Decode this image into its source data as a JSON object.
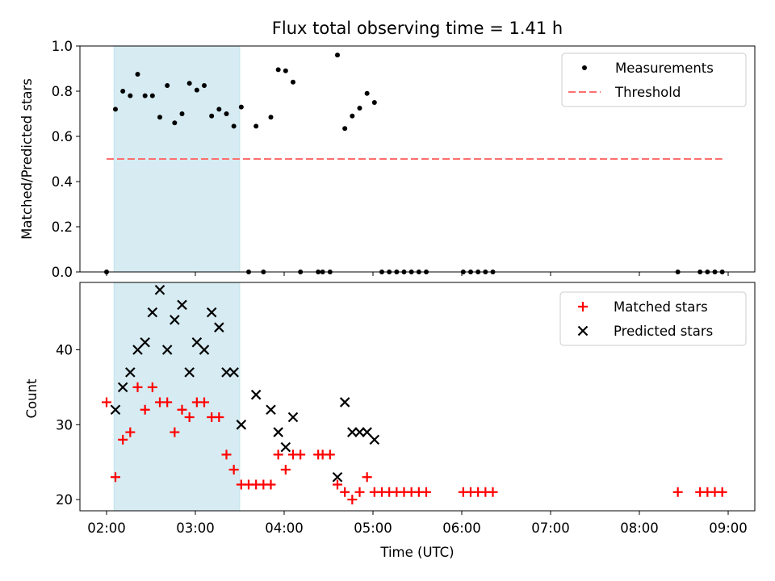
{
  "figure": {
    "title": "Flux total observing time = 1.41 h",
    "xlabel": "Time (UTC)",
    "x_tick_labels": [
      "02:00",
      "03:00",
      "04:00",
      "05:00",
      "06:00",
      "07:00",
      "08:00",
      "09:00"
    ]
  },
  "chart_data": [
    {
      "type": "scatter",
      "panel": "top",
      "ylabel": "Matched/Predicted stars",
      "xlim": [
        "01:42",
        "09:18"
      ],
      "ylim": [
        0,
        1.0
      ],
      "y_ticks": [
        "0.0",
        "0.2",
        "0.4",
        "0.6",
        "0.8",
        "1.0"
      ],
      "legend_position": "upper right",
      "shaded_span": {
        "x_start": "02:05",
        "x_end": "03:30",
        "color": "#add8e6"
      },
      "series": [
        {
          "name": "Measurements",
          "marker": "dot",
          "color": "#000000",
          "x": [
            "02:00",
            "02:06",
            "02:11",
            "02:16",
            "02:21",
            "02:26",
            "02:31",
            "02:36",
            "02:41",
            "02:46",
            "02:51",
            "02:56",
            "03:01",
            "03:06",
            "03:11",
            "03:16",
            "03:21",
            "03:26",
            "03:31",
            "03:36",
            "03:41",
            "03:46",
            "03:51",
            "03:56",
            "04:01",
            "04:06",
            "04:11",
            "04:23",
            "04:26",
            "04:31",
            "04:36",
            "04:41",
            "04:46",
            "04:51",
            "04:56",
            "05:01",
            "05:06",
            "05:11",
            "05:16",
            "05:21",
            "05:26",
            "05:31",
            "05:36",
            "06:01",
            "06:06",
            "06:11",
            "06:16",
            "06:21",
            "08:26",
            "08:41",
            "08:46",
            "08:51",
            "08:56"
          ],
          "y": [
            0.0,
            0.72,
            0.8,
            0.78,
            0.875,
            0.78,
            0.78,
            0.685,
            0.825,
            0.66,
            0.7,
            0.835,
            0.805,
            0.825,
            0.69,
            0.72,
            0.7,
            0.645,
            0.73,
            0.0,
            0.645,
            0.0,
            0.685,
            0.895,
            0.89,
            0.84,
            0.0,
            0.0,
            0.0,
            0.0,
            0.96,
            0.635,
            0.69,
            0.725,
            0.79,
            0.75,
            0.0,
            0.0,
            0.0,
            0.0,
            0.0,
            0.0,
            0.0,
            0.0,
            0.0,
            0.0,
            0.0,
            0.0,
            0.0,
            0.0,
            0.0,
            0.0,
            0.0
          ]
        },
        {
          "name": "Threshold",
          "type": "line",
          "style": "dashed",
          "color": "#ff6f6f",
          "x": [
            "02:00",
            "08:56"
          ],
          "y": [
            0.5,
            0.5
          ]
        }
      ]
    },
    {
      "type": "scatter",
      "panel": "bottom",
      "ylabel": "Count",
      "xlim": [
        "01:42",
        "09:18"
      ],
      "ylim": [
        18.5,
        49
      ],
      "y_ticks": [
        "20",
        "30",
        "40"
      ],
      "legend_position": "upper right",
      "shaded_span": {
        "x_start": "02:05",
        "x_end": "03:30",
        "color": "#add8e6"
      },
      "series": [
        {
          "name": "Matched stars",
          "marker": "plus",
          "color": "#ff0000",
          "x": [
            "02:00",
            "02:06",
            "02:11",
            "02:16",
            "02:21",
            "02:26",
            "02:31",
            "02:36",
            "02:41",
            "02:46",
            "02:51",
            "02:56",
            "03:01",
            "03:06",
            "03:11",
            "03:16",
            "03:21",
            "03:26",
            "03:31",
            "03:36",
            "03:41",
            "03:46",
            "03:51",
            "03:56",
            "04:01",
            "04:06",
            "04:11",
            "04:23",
            "04:26",
            "04:31",
            "04:36",
            "04:41",
            "04:46",
            "04:51",
            "04:56",
            "05:01",
            "05:06",
            "05:11",
            "05:16",
            "05:21",
            "05:26",
            "05:31",
            "05:36",
            "06:01",
            "06:06",
            "06:11",
            "06:16",
            "06:21",
            "08:26",
            "08:41",
            "08:46",
            "08:51",
            "08:56"
          ],
          "y": [
            33,
            23,
            28,
            29,
            35,
            32,
            35,
            33,
            33,
            29,
            32,
            31,
            33,
            33,
            31,
            31,
            26,
            24,
            22,
            22,
            22,
            22,
            22,
            26,
            24,
            26,
            26,
            26,
            26,
            26,
            22,
            21,
            20,
            21,
            23,
            21,
            21,
            21,
            21,
            21,
            21,
            21,
            21,
            21,
            21,
            21,
            21,
            21,
            21,
            21,
            21,
            21,
            21
          ]
        },
        {
          "name": "Predicted stars",
          "marker": "x",
          "color": "#000000",
          "x": [
            "02:06",
            "02:11",
            "02:16",
            "02:21",
            "02:26",
            "02:31",
            "02:36",
            "02:41",
            "02:46",
            "02:51",
            "02:56",
            "03:01",
            "03:06",
            "03:11",
            "03:16",
            "03:21",
            "03:26",
            "03:31",
            "03:41",
            "03:51",
            "03:56",
            "04:01",
            "04:06",
            "04:36",
            "04:41",
            "04:46",
            "04:51",
            "04:56",
            "05:01"
          ],
          "y": [
            32,
            35,
            37,
            40,
            41,
            45,
            48,
            40,
            44,
            46,
            37,
            41,
            40,
            45,
            43,
            37,
            37,
            30,
            34,
            32,
            29,
            27,
            31,
            23,
            33,
            29,
            29,
            29,
            28
          ]
        }
      ]
    }
  ]
}
